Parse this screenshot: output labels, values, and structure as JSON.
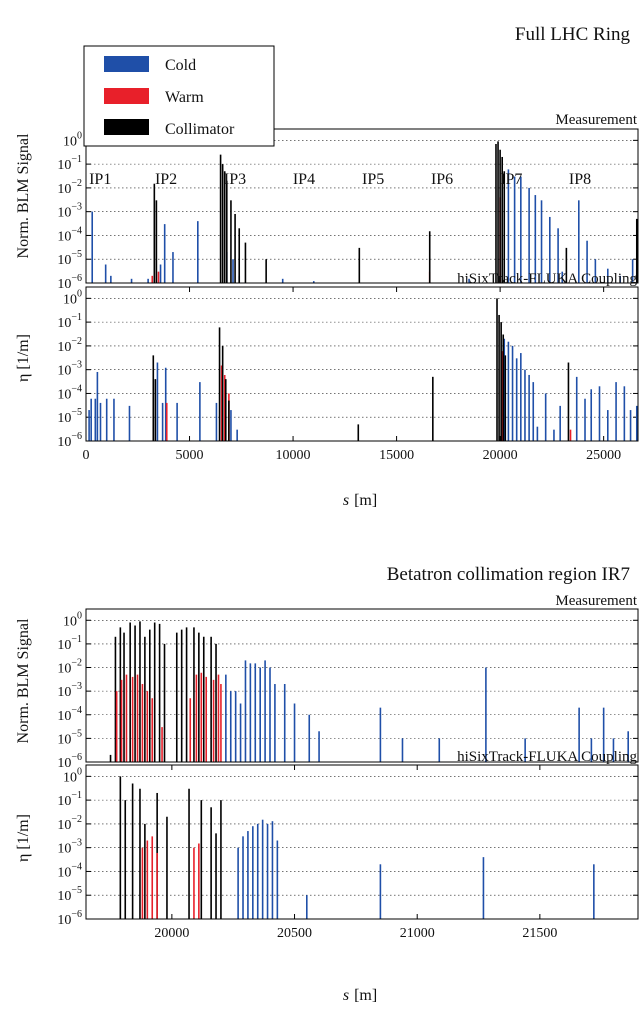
{
  "legend": [
    {
      "label": "Cold",
      "color": "#1f4fa8"
    },
    {
      "label": "Warm",
      "color": "#e8202a"
    },
    {
      "label": "Collimator",
      "color": "#000000"
    }
  ],
  "sections": [
    {
      "title": "Full LHC Ring",
      "xlabel_sym": "s",
      "xlabel_unit": "[m]"
    },
    {
      "title": "Betatron collimation region IR7",
      "xlabel_sym": "s",
      "xlabel_unit": "[m]"
    }
  ],
  "ip_labels": [
    {
      "text": "IP1",
      "s": 150
    },
    {
      "text": "IP2",
      "s": 3330
    },
    {
      "text": "IP3",
      "s": 6660
    },
    {
      "text": "IP4",
      "s": 9990
    },
    {
      "text": "IP5",
      "s": 13330
    },
    {
      "text": "IP6",
      "s": 16660
    },
    {
      "text": "IP7",
      "s": 20000
    },
    {
      "text": "IP8",
      "s": 23320
    }
  ],
  "chart_data": [
    {
      "type": "bar",
      "panel": "Full ring - measurement",
      "title": "Full LHC Ring",
      "tag": "Measurement",
      "ylabel": "Norm. BLM Signal",
      "yscale": "log",
      "ylim": [
        1e-06,
        3
      ],
      "xlim": [
        0,
        26659
      ],
      "grid": true,
      "legend_placement": "top-left",
      "y_ticks": [
        "10^0",
        "10^-1",
        "10^-2",
        "10^-3",
        "10^-4",
        "10^-5",
        "10^-6"
      ],
      "series": [
        {
          "name": "Cold",
          "values": [
            [
              300,
              0.001
            ],
            [
              950,
              6e-06
            ],
            [
              1200,
              2e-06
            ],
            [
              2200,
              1.5e-06
            ],
            [
              3000,
              1.5e-06
            ],
            [
              3600,
              6e-06
            ],
            [
              3800,
              0.0003
            ],
            [
              4200,
              2e-05
            ],
            [
              5400,
              0.0004
            ],
            [
              6800,
              2e-05
            ],
            [
              7100,
              1e-05
            ],
            [
              7400,
              2e-06
            ],
            [
              9500,
              1.5e-06
            ],
            [
              11000,
              1.2e-06
            ],
            [
              18500,
              1.5e-06
            ],
            [
              20400,
              0.06
            ],
            [
              20700,
              0.03
            ],
            [
              21000,
              0.03
            ],
            [
              21400,
              0.01
            ],
            [
              21700,
              0.005
            ],
            [
              22000,
              0.003
            ],
            [
              22400,
              0.0006
            ],
            [
              22800,
              0.0002
            ],
            [
              23000,
              3e-06
            ],
            [
              23800,
              0.003
            ],
            [
              24200,
              6e-05
            ],
            [
              24600,
              1e-05
            ],
            [
              25200,
              4e-06
            ],
            [
              25800,
              2e-06
            ],
            [
              26400,
              1e-05
            ]
          ]
        },
        {
          "name": "Warm",
          "values": [
            [
              3200,
              2e-06
            ],
            [
              3500,
              3e-06
            ],
            [
              16600,
              3e-06
            ],
            [
              20000,
              0.004
            ],
            [
              26600,
              4e-06
            ]
          ]
        },
        {
          "name": "Collimator",
          "values": [
            [
              3300,
              0.015
            ],
            [
              3400,
              0.003
            ],
            [
              6500,
              0.25
            ],
            [
              6600,
              0.1
            ],
            [
              6700,
              0.05
            ],
            [
              6800,
              0.02
            ],
            [
              7000,
              0.003
            ],
            [
              7200,
              0.0008
            ],
            [
              7400,
              0.0002
            ],
            [
              7700,
              5e-05
            ],
            [
              8700,
              1e-05
            ],
            [
              13200,
              3e-05
            ],
            [
              16600,
              0.00015
            ],
            [
              19800,
              0.7
            ],
            [
              19900,
              0.9
            ],
            [
              20000,
              0.4
            ],
            [
              20100,
              0.2
            ],
            [
              20200,
              0.05
            ],
            [
              23200,
              3e-05
            ],
            [
              26600,
              0.0005
            ]
          ]
        }
      ]
    },
    {
      "type": "bar",
      "panel": "Full ring - simulation",
      "tag": "hiSixTrack-FLUKA Coupling",
      "ylabel": "η [1/m]",
      "yscale": "log",
      "ylim": [
        1e-06,
        3
      ],
      "xlim": [
        0,
        26659
      ],
      "grid": true,
      "xlabel": "s [m]",
      "x_ticks": [
        "0",
        "5000",
        "10000",
        "15000",
        "20000",
        "25000"
      ],
      "y_ticks": [
        "10^0",
        "10^-1",
        "10^-2",
        "10^-3",
        "10^-4",
        "10^-5",
        "10^-6"
      ],
      "series": [
        {
          "name": "Cold",
          "values": [
            [
              150,
              2e-05
            ],
            [
              250,
              6e-05
            ],
            [
              450,
              6e-05
            ],
            [
              550,
              0.0008
            ],
            [
              700,
              4e-05
            ],
            [
              1000,
              6e-05
            ],
            [
              1350,
              6e-05
            ],
            [
              2100,
              3e-05
            ],
            [
              3450,
              0.002
            ],
            [
              3700,
              4e-05
            ],
            [
              3850,
              0.0012
            ],
            [
              4400,
              4e-05
            ],
            [
              5500,
              0.0003
            ],
            [
              6300,
              4e-05
            ],
            [
              7000,
              2e-05
            ],
            [
              7300,
              3e-06
            ],
            [
              20200,
              0.02
            ],
            [
              20400,
              0.015
            ],
            [
              20600,
              0.01
            ],
            [
              20800,
              0.003
            ],
            [
              21000,
              0.005
            ],
            [
              21200,
              0.001
            ],
            [
              21400,
              0.0006
            ],
            [
              21600,
              0.0003
            ],
            [
              21800,
              4e-06
            ],
            [
              22200,
              0.0001
            ],
            [
              22600,
              3e-06
            ],
            [
              22900,
              3e-05
            ],
            [
              23700,
              0.0005
            ],
            [
              24100,
              6e-05
            ],
            [
              24400,
              0.00015
            ],
            [
              24800,
              0.0002
            ],
            [
              25200,
              2e-05
            ],
            [
              25600,
              0.0003
            ],
            [
              26000,
              0.0002
            ],
            [
              26300,
              2e-05
            ],
            [
              26600,
              3e-05
            ]
          ]
        },
        {
          "name": "Warm",
          "values": [
            [
              3900,
              4e-05
            ],
            [
              6550,
              0.0015
            ],
            [
              6700,
              0.0006
            ],
            [
              6900,
              0.0001
            ],
            [
              20100,
              0.006
            ],
            [
              23400,
              3e-06
            ]
          ]
        },
        {
          "name": "Collimator",
          "values": [
            [
              3250,
              0.004
            ],
            [
              3350,
              0.0004
            ],
            [
              6450,
              0.06
            ],
            [
              6600,
              0.01
            ],
            [
              6750,
              0.0004
            ],
            [
              6900,
              5e-05
            ],
            [
              13150,
              5e-06
            ],
            [
              16750,
              0.0005
            ],
            [
              19850,
              1.0
            ],
            [
              19950,
              0.2
            ],
            [
              20050,
              0.1
            ],
            [
              20150,
              0.03
            ],
            [
              20250,
              0.004
            ],
            [
              23300,
              0.002
            ]
          ]
        }
      ]
    },
    {
      "type": "bar",
      "panel": "IR7 - measurement",
      "title": "Betatron collimation region IR7",
      "tag": "Measurement",
      "ylabel": "Norm. BLM Signal",
      "yscale": "log",
      "ylim": [
        1e-06,
        3
      ],
      "xlim": [
        19650,
        21900
      ],
      "grid": true,
      "y_ticks": [
        "10^0",
        "10^-1",
        "10^-2",
        "10^-3",
        "10^-4",
        "10^-5",
        "10^-6"
      ],
      "series": [
        {
          "name": "Collimator",
          "values": [
            [
              19750,
              2e-06
            ],
            [
              19770,
              0.2
            ],
            [
              19790,
              0.5
            ],
            [
              19805,
              0.3
            ],
            [
              19830,
              0.8
            ],
            [
              19850,
              0.6
            ],
            [
              19870,
              0.9
            ],
            [
              19890,
              0.2
            ],
            [
              19910,
              0.4
            ],
            [
              19930,
              0.8
            ],
            [
              19950,
              0.7
            ],
            [
              19970,
              0.1
            ],
            [
              20020,
              0.3
            ],
            [
              20040,
              0.4
            ],
            [
              20060,
              0.5
            ],
            [
              20090,
              0.5
            ],
            [
              20110,
              0.3
            ],
            [
              20130,
              0.2
            ],
            [
              20160,
              0.2
            ],
            [
              20180,
              0.1
            ]
          ]
        },
        {
          "name": "Warm",
          "values": [
            [
              19775,
              0.001
            ],
            [
              19795,
              0.003
            ],
            [
              19815,
              0.005
            ],
            [
              19840,
              0.004
            ],
            [
              19860,
              0.005
            ],
            [
              19880,
              0.002
            ],
            [
              19900,
              0.001
            ],
            [
              19920,
              0.0005
            ],
            [
              19960,
              3e-05
            ],
            [
              20075,
              0.0005
            ],
            [
              20100,
              0.005
            ],
            [
              20120,
              0.006
            ],
            [
              20140,
              0.004
            ],
            [
              20170,
              0.003
            ],
            [
              20190,
              0.005
            ],
            [
              20200,
              0.002
            ]
          ]
        },
        {
          "name": "Cold",
          "values": [
            [
              20220,
              0.005
            ],
            [
              20240,
              0.001
            ],
            [
              20260,
              0.001
            ],
            [
              20280,
              0.0003
            ],
            [
              20300,
              0.02
            ],
            [
              20320,
              0.015
            ],
            [
              20340,
              0.015
            ],
            [
              20360,
              0.01
            ],
            [
              20380,
              0.02
            ],
            [
              20400,
              0.01
            ],
            [
              20420,
              0.002
            ],
            [
              20460,
              0.002
            ],
            [
              20500,
              0.0003
            ],
            [
              20560,
              0.0001
            ],
            [
              20600,
              2e-05
            ],
            [
              20850,
              0.0002
            ],
            [
              20940,
              1e-05
            ],
            [
              21090,
              1e-05
            ],
            [
              21280,
              0.01
            ],
            [
              21440,
              1e-05
            ],
            [
              21660,
              0.0002
            ],
            [
              21710,
              1e-05
            ],
            [
              21760,
              0.0002
            ],
            [
              21800,
              1e-05
            ],
            [
              21860,
              2e-05
            ]
          ]
        }
      ]
    },
    {
      "type": "bar",
      "panel": "IR7 - simulation",
      "tag": "hiSixTrack-FLUKA Coupling",
      "ylabel": "η [1/m]",
      "yscale": "log",
      "ylim": [
        1e-06,
        3
      ],
      "xlim": [
        19650,
        21900
      ],
      "grid": true,
      "xlabel": "s [m]",
      "x_ticks": [
        "20000",
        "20500",
        "21000",
        "21500"
      ],
      "y_ticks": [
        "10^0",
        "10^-1",
        "10^-2",
        "10^-3",
        "10^-4",
        "10^-5",
        "10^-6"
      ],
      "series": [
        {
          "name": "Collimator",
          "values": [
            [
              19790,
              1.0
            ],
            [
              19810,
              0.1
            ],
            [
              19840,
              0.5
            ],
            [
              19870,
              0.3
            ],
            [
              19890,
              0.01
            ],
            [
              19940,
              0.2
            ],
            [
              19980,
              0.02
            ],
            [
              20070,
              0.3
            ],
            [
              20120,
              0.1
            ],
            [
              20160,
              0.05
            ],
            [
              20180,
              0.004
            ],
            [
              20200,
              0.1
            ]
          ]
        },
        {
          "name": "Warm",
          "values": [
            [
              19880,
              0.001
            ],
            [
              19900,
              0.002
            ],
            [
              19920,
              0.003
            ],
            [
              19940,
              0.0006
            ],
            [
              20090,
              0.001
            ],
            [
              20110,
              0.0015
            ]
          ]
        },
        {
          "name": "Cold",
          "values": [
            [
              20270,
              0.001
            ],
            [
              20290,
              0.003
            ],
            [
              20310,
              0.005
            ],
            [
              20330,
              0.008
            ],
            [
              20350,
              0.01
            ],
            [
              20370,
              0.015
            ],
            [
              20390,
              0.01
            ],
            [
              20410,
              0.013
            ],
            [
              20430,
              0.002
            ],
            [
              20550,
              1e-05
            ],
            [
              20850,
              0.0002
            ],
            [
              21270,
              0.0004
            ],
            [
              21720,
              0.0002
            ]
          ]
        }
      ]
    }
  ]
}
